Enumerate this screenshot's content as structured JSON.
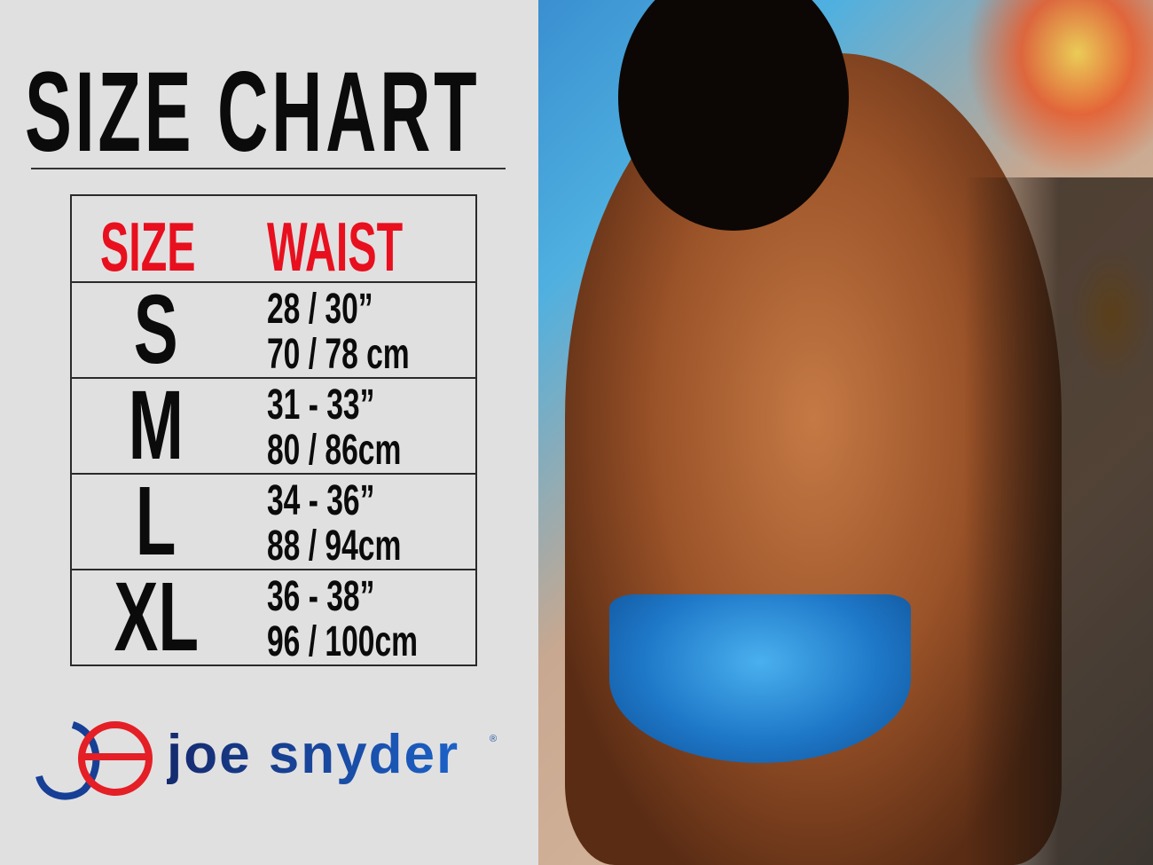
{
  "title": "SIZE CHART",
  "table": {
    "headers": {
      "size": "SIZE",
      "waist": "WAIST"
    },
    "rows": [
      {
        "size": "S",
        "inches": "28 / 30”",
        "cm": "70 / 78 cm"
      },
      {
        "size": "M",
        "inches": "31 - 33”",
        "cm": "80 / 86cm"
      },
      {
        "size": "L",
        "inches": "34 - 36”",
        "cm": "88 / 94cm"
      },
      {
        "size": "XL",
        "inches": "36 - 38”",
        "cm": "96 / 100cm"
      }
    ]
  },
  "brand": {
    "name": "joe snyder",
    "registered": "®"
  },
  "colors": {
    "header_red": "#e8101e",
    "brand_blue": "#1b62c8",
    "brand_red": "#e41f26",
    "panel_bg": "#e1e0e1"
  },
  "photo": {
    "icon": "model-photo"
  }
}
